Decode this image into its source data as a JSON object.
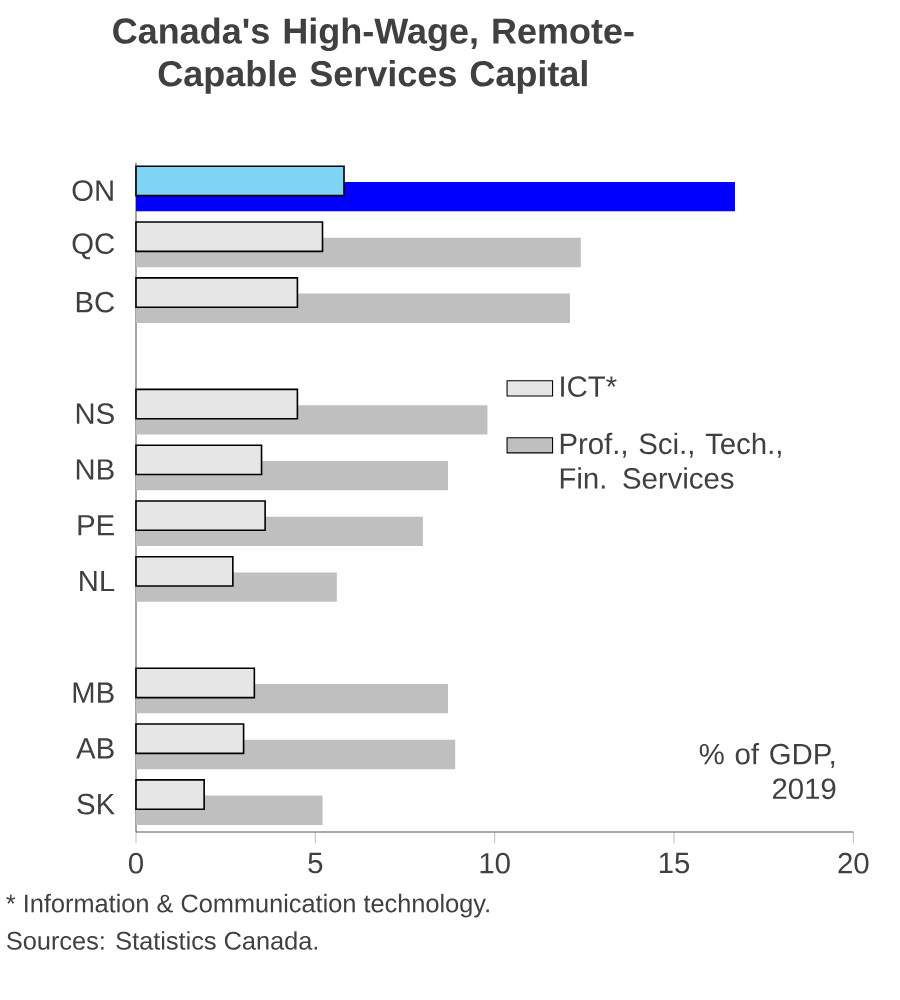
{
  "chart_data": {
    "type": "bar",
    "orientation": "horizontal",
    "title": "Canada's High-Wage, Remote-Capable Services Capital",
    "categories": [
      "ON",
      "QC",
      "BC",
      null,
      "NS",
      "NB",
      "PE",
      "NL",
      null,
      "MB",
      "AB",
      "SK"
    ],
    "series": [
      {
        "name": "ICT*",
        "color": "#e6e6e6",
        "colors": [
          "#7fd4f5",
          "#e6e6e6",
          "#e6e6e6",
          null,
          "#e6e6e6",
          "#e6e6e6",
          "#e6e6e6",
          "#e6e6e6",
          null,
          "#e6e6e6",
          "#e6e6e6",
          "#e6e6e6"
        ],
        "values": [
          5.8,
          5.2,
          4.5,
          null,
          4.5,
          3.5,
          3.6,
          2.7,
          null,
          3.3,
          3.0,
          1.9
        ]
      },
      {
        "name": "Prof., Sci., Tech., Fin. Services",
        "color": "#bfbfbf",
        "colors": [
          "#0000ff",
          "#bfbfbf",
          "#bfbfbf",
          null,
          "#bfbfbf",
          "#bfbfbf",
          "#bfbfbf",
          "#bfbfbf",
          null,
          "#bfbfbf",
          "#bfbfbf",
          "#bfbfbf"
        ],
        "values": [
          16.7,
          12.4,
          12.1,
          null,
          9.8,
          8.7,
          8.0,
          5.6,
          null,
          8.7,
          8.9,
          5.2
        ]
      }
    ],
    "xlim": [
      0,
      20
    ],
    "xticks": [
      0,
      5,
      10,
      15,
      20
    ],
    "legend": "right",
    "annotations": [
      "% of GDP, 2019",
      "* Information & Communication technology.",
      "Sources: Statistics Canada."
    ]
  }
}
